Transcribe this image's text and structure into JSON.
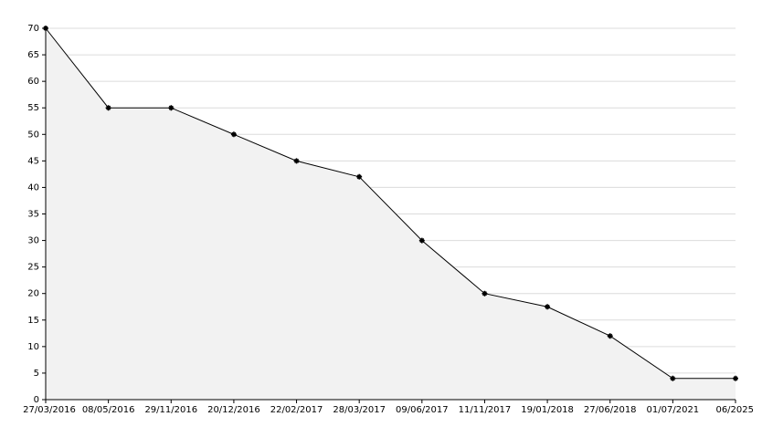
{
  "chart_data": {
    "type": "area",
    "categories": [
      "27/03/2016",
      "08/05/2016",
      "29/11/2016",
      "20/12/2016",
      "22/02/2017",
      "28/03/2017",
      "09/06/2017",
      "11/11/2017",
      "19/01/2018",
      "27/06/2018",
      "01/07/2021",
      "06/2025"
    ],
    "values": [
      70,
      55,
      55,
      50,
      45,
      42,
      30,
      20,
      17.5,
      12,
      4,
      4
    ],
    "color": "#000000",
    "fill": "#f2f2f2",
    "ylim": [
      0,
      70
    ],
    "yticks": [
      0,
      5,
      10,
      15,
      20,
      25,
      30,
      35,
      40,
      45,
      50,
      55,
      60,
      65,
      70
    ],
    "grid": true
  }
}
